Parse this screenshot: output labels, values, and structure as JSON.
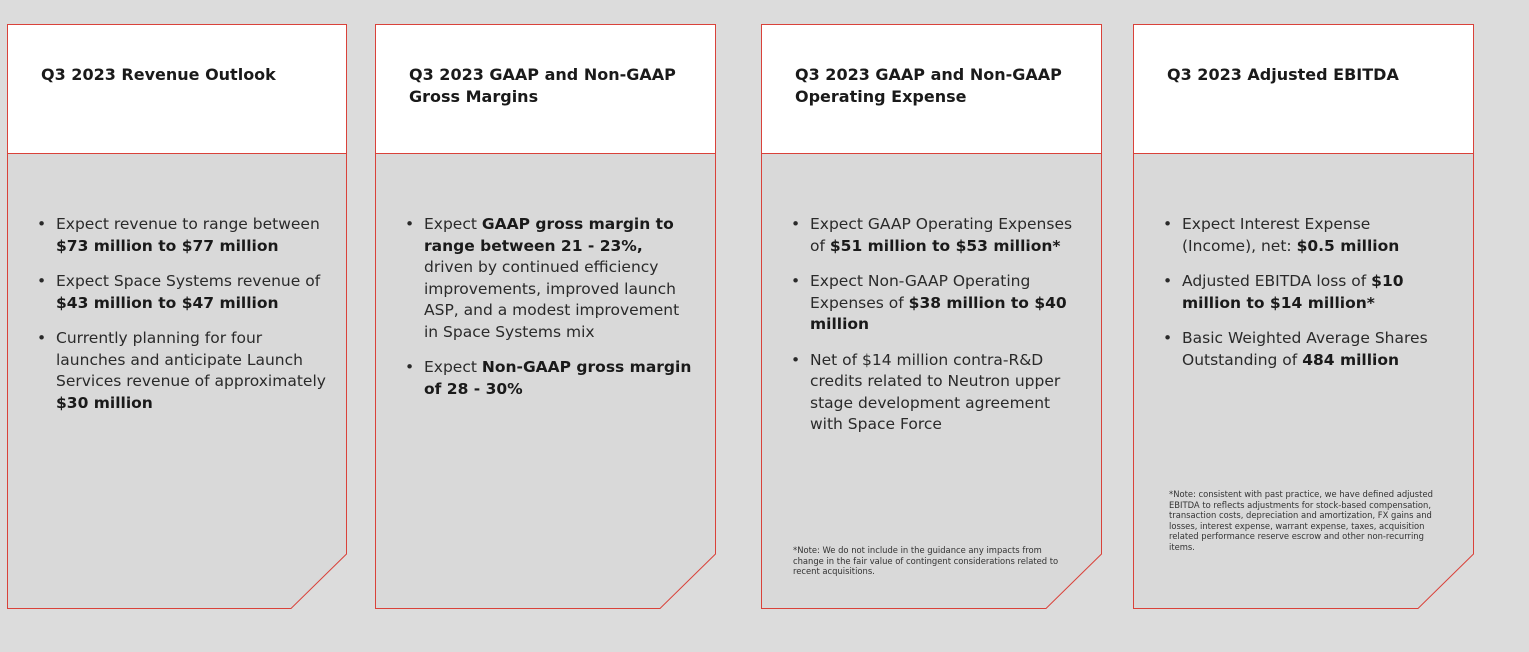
{
  "colors": {
    "background": "#dcdcdc",
    "panel_fill": "#d9d9d9",
    "header_fill": "#ffffff",
    "border": "#d9423a"
  },
  "cards": [
    {
      "title": "Q3 2023 Revenue Outlook",
      "bullets": [
        {
          "parts": [
            {
              "t": "Expect revenue to range between "
            },
            {
              "t": "$73 million to $77 million",
              "b": true
            }
          ]
        },
        {
          "parts": [
            {
              "t": "Expect Space Systems revenue of "
            },
            {
              "t": "$43 million to $47 million",
              "b": true
            }
          ]
        },
        {
          "parts": [
            {
              "t": "Currently planning for four launches and anticipate Launch Services revenue of approximately "
            },
            {
              "t": "$30 million",
              "b": true
            }
          ]
        }
      ]
    },
    {
      "title": "Q3 2023 GAAP and Non-GAAP Gross Margins",
      "bullets": [
        {
          "parts": [
            {
              "t": "Expect "
            },
            {
              "t": "GAAP gross margin to range between 21 - 23%,",
              "b": true
            },
            {
              "t": " driven by continued efficiency improvements, improved launch ASP, and a modest improvement in Space Systems mix"
            }
          ]
        },
        {
          "parts": [
            {
              "t": "Expect "
            },
            {
              "t": "Non-GAAP gross margin of 28 - 30%",
              "b": true
            }
          ]
        }
      ]
    },
    {
      "title": "Q3 2023 GAAP and Non-GAAP Operating Expense",
      "bullets": [
        {
          "parts": [
            {
              "t": "Expect GAAP Operating Expenses of "
            },
            {
              "t": "$51 million to $53 million*",
              "b": true
            }
          ]
        },
        {
          "parts": [
            {
              "t": "Expect Non-GAAP Operating Expenses of "
            },
            {
              "t": "$38 million to $40 million",
              "b": true
            }
          ]
        },
        {
          "parts": [
            {
              "t": "Net of $14 million contra-R&D credits related to Neutron upper stage development agreement with Space Force"
            }
          ]
        }
      ],
      "note": "*Note: We do not include in the guidance any impacts from change in the fair value of contingent considerations related to recent acquisitions."
    },
    {
      "title": "Q3 2023 Adjusted EBITDA",
      "bullets": [
        {
          "parts": [
            {
              "t": "Expect Interest Expense (Income), net: "
            },
            {
              "t": "$0.5 million",
              "b": true
            }
          ]
        },
        {
          "parts": [
            {
              "t": "Adjusted EBITDA loss of "
            },
            {
              "t": "$10 million to $14 million*",
              "b": true
            }
          ]
        },
        {
          "parts": [
            {
              "t": "Basic Weighted Average Shares Outstanding of "
            },
            {
              "t": "484 million",
              "b": true
            }
          ]
        }
      ],
      "note": "*Note: consistent with past practice, we have defined adjusted EBITDA to reflects adjustments for stock-based compensation, transaction costs, depreciation and amortization, FX gains and losses, interest expense, warrant expense, taxes, acquisition related performance reserve escrow and other non-recurring items."
    }
  ]
}
